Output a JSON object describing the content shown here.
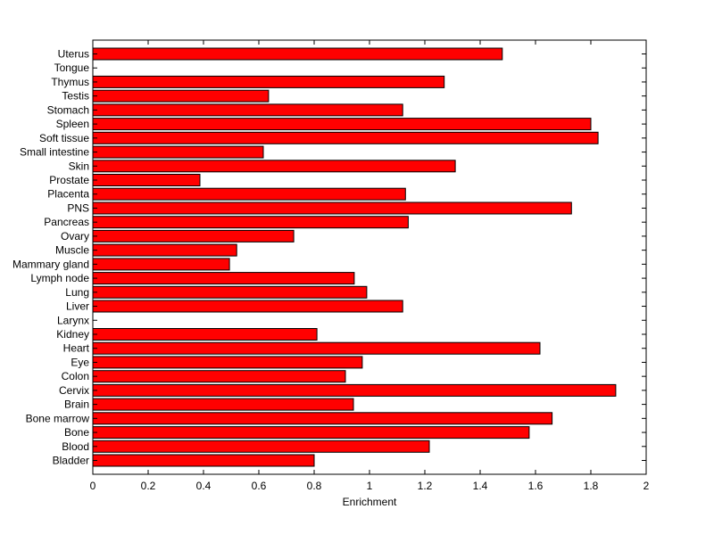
{
  "chart_data": {
    "type": "bar",
    "orientation": "horizontal",
    "title": "",
    "xlabel": "Enrichment",
    "ylabel": "",
    "xlim": [
      0,
      2
    ],
    "xticks": [
      "0",
      "0.2",
      "0.4",
      "0.6",
      "0.8",
      "1",
      "1.2",
      "1.4",
      "1.6",
      "1.8",
      "2"
    ],
    "grid": false,
    "bar_color": "#ff0000",
    "categories": [
      "Uterus",
      "Tongue",
      "Thymus",
      "Testis",
      "Stomach",
      "Spleen",
      "Soft tissue",
      "Small intestine",
      "Skin",
      "Prostate",
      "Placenta",
      "PNS",
      "Pancreas",
      "Ovary",
      "Muscle",
      "Mammary gland",
      "Lymph node",
      "Lung",
      "Liver",
      "Larynx",
      "Kidney",
      "Heart",
      "Eye",
      "Colon",
      "Cervix",
      "Brain",
      "Bone marrow",
      "Bone",
      "Blood",
      "Bladder"
    ],
    "values": [
      1.48,
      0,
      1.27,
      0.635,
      1.12,
      1.8,
      1.826,
      0.616,
      1.31,
      0.387,
      1.13,
      1.73,
      1.14,
      0.726,
      0.52,
      0.494,
      0.945,
      0.99,
      1.12,
      0,
      0.81,
      1.616,
      0.974,
      0.913,
      1.89,
      0.942,
      1.66,
      1.577,
      1.216,
      0.8
    ]
  }
}
